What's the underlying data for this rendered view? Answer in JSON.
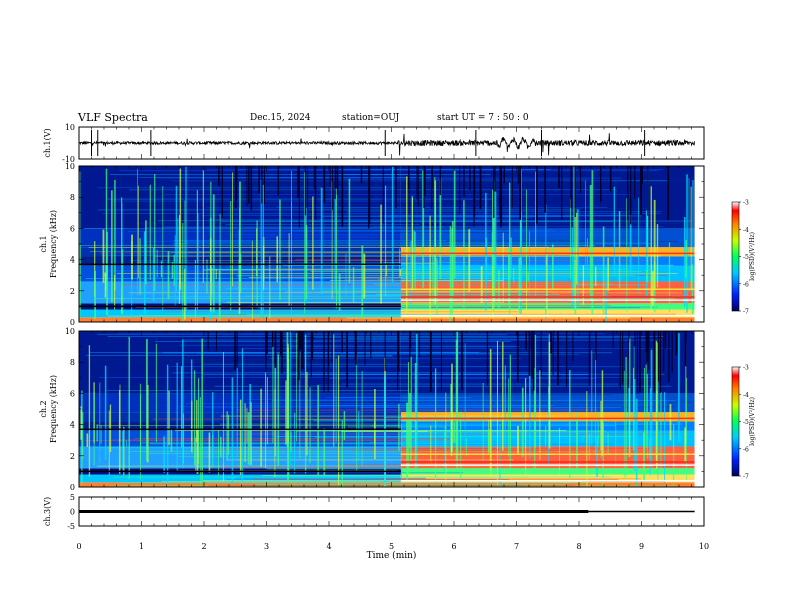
{
  "header": {
    "title": "VLF Spectra",
    "date": "Dec.15, 2024",
    "station": "station=OUJ",
    "start": "start  UT =   7 : 50 : 0"
  },
  "chart_data": [
    {
      "type": "line",
      "panel": "ch1-waveform",
      "ylabel": "ch.1(V)",
      "ylim": [
        -10,
        10
      ],
      "y_ticks": [
        "10",
        "-10"
      ],
      "xlim": [
        0,
        10
      ],
      "x_range_data": [
        0,
        9.85
      ],
      "description_of_trace": "noisy waveform near 0 V, larger amplitude after ~5.1 min",
      "baseline_v": 0,
      "amplitude_before_v": 1.5,
      "amplitude_after_v": 3
    },
    {
      "type": "heatmap",
      "panel": "ch1-spectrogram",
      "ylabel": "ch.1\nFrequency (kHz)",
      "ylabel_top": "ch.1",
      "ylabel_main": "Frequency (kHz)",
      "ylim": [
        0,
        10
      ],
      "y_ticks": [
        "0",
        "2",
        "4",
        "6",
        "8",
        "10"
      ],
      "xlim": [
        0,
        10
      ],
      "x_range_data": [
        0,
        9.85
      ],
      "change_time_min": 5.15,
      "colorbar": {
        "label": "log(PSD)(V²/Hz)",
        "ticks": [
          "-3",
          "-4",
          "-5",
          "-6",
          "-7"
        ],
        "range": [
          -7,
          -3
        ]
      }
    },
    {
      "type": "heatmap",
      "panel": "ch2-spectrogram",
      "ylabel_top": "ch.2",
      "ylabel_main": "Frequency (kHz)",
      "ylim": [
        0,
        10
      ],
      "y_ticks": [
        "0",
        "2",
        "4",
        "6",
        "8",
        "10"
      ],
      "xlim": [
        0,
        10
      ],
      "x_range_data": [
        0,
        9.85
      ],
      "change_time_min": 5.15,
      "colorbar": {
        "label": "log(PSD)(V²/Hz)",
        "ticks": [
          "-3",
          "-4",
          "-5",
          "-6",
          "-7"
        ],
        "range": [
          -7,
          -3
        ]
      }
    },
    {
      "type": "line",
      "panel": "ch3-level",
      "ylabel": "ch.3(V)",
      "ylim": [
        -5,
        5
      ],
      "y_ticks": [
        "5",
        "0",
        "-5"
      ],
      "xlim": [
        0,
        10
      ],
      "series": [
        {
          "x": [
            0,
            9.85
          ],
          "y": [
            0,
            0
          ]
        }
      ],
      "thick_segment_end_min": 8.15,
      "xlabel": "Time (min)",
      "x_ticks": [
        "0",
        "1",
        "2",
        "3",
        "4",
        "5",
        "6",
        "7",
        "8",
        "9",
        "10"
      ]
    }
  ]
}
